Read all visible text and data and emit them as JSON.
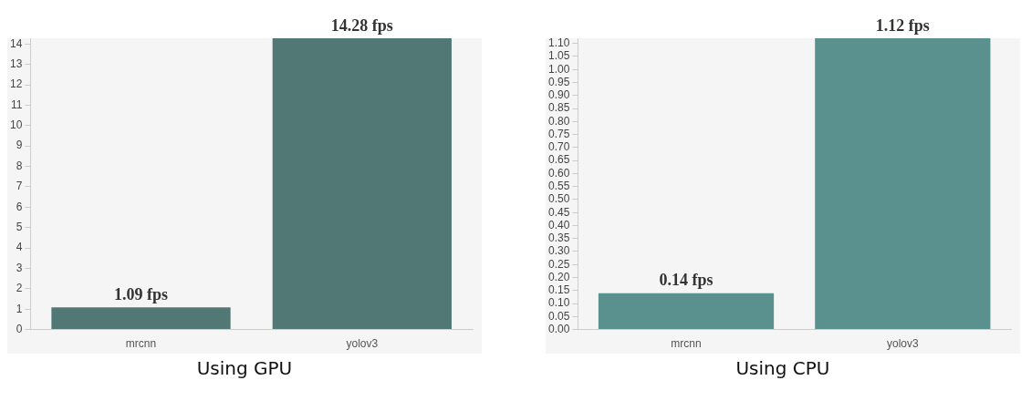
{
  "chart_data": [
    {
      "type": "bar",
      "categories": [
        "mrcnn",
        "yolov3"
      ],
      "values": [
        1.09,
        14.28
      ],
      "color": "#527876",
      "value_labels": [
        "1.09 fps",
        "14.28 fps"
      ],
      "ylim": [
        0,
        14.28
      ],
      "yticks": [
        0,
        1,
        2,
        3,
        4,
        5,
        6,
        7,
        8,
        9,
        10,
        11,
        12,
        13,
        14
      ],
      "grid": false,
      "legend": false,
      "annotations": [
        "Using GPU"
      ]
    },
    {
      "type": "bar",
      "categories": [
        "mrcnn",
        "yolov3"
      ],
      "values": [
        0.14,
        1.12
      ],
      "color": "#5a918f",
      "value_labels": [
        "0.14 fps",
        "1.12 fps"
      ],
      "ylim": [
        0,
        1.12
      ],
      "yticks": [
        {
          "value": 0,
          "label": "0.00"
        },
        0.05,
        {
          "value": 0.1,
          "label": "0.10"
        },
        0.15,
        {
          "value": 0.2,
          "label": "0.20"
        },
        0.25,
        {
          "value": 0.3,
          "label": "0.30"
        },
        0.35,
        {
          "value": 0.4,
          "label": "0.40"
        },
        0.45,
        {
          "value": 0.5,
          "label": "0.50"
        },
        0.55,
        {
          "value": 0.6,
          "label": "0.60"
        },
        0.65,
        {
          "value": 0.7,
          "label": "0.70"
        },
        0.75,
        {
          "value": 0.8,
          "label": "0.80"
        },
        0.85,
        {
          "value": 0.9,
          "label": "0.90"
        },
        0.95,
        {
          "value": 1.0,
          "label": "1.00"
        },
        1.05,
        {
          "value": 1.1,
          "label": "1.10"
        }
      ],
      "grid": false,
      "legend": false,
      "annotations": [
        "Using CPU"
      ]
    }
  ]
}
